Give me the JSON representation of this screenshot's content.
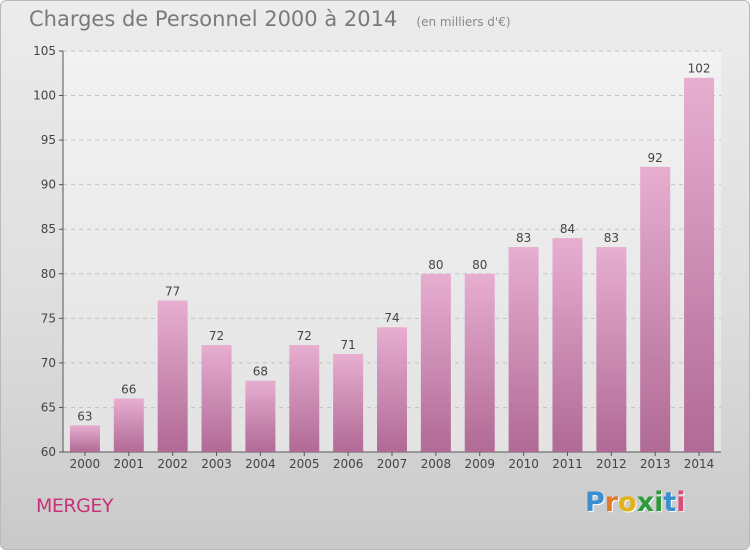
{
  "title": "Charges de Personnel 2000 à 2014",
  "subtitle": "(en milliers d'€)",
  "place": "MERGEY",
  "logo": {
    "letters": [
      "P",
      "r",
      "o",
      "x",
      "i",
      "t",
      "i"
    ],
    "colors": [
      "#3b8fd0",
      "#e07a2a",
      "#e2b21d",
      "#2d9a3c",
      "#2d9a3c",
      "#3b8fd0",
      "#e0477a"
    ]
  },
  "colors": {
    "bar": "#d780b4",
    "bar_light": "#e7aed0",
    "bar_dark": "#b06a95"
  },
  "chart_data": {
    "type": "bar",
    "categories": [
      "2000",
      "2001",
      "2002",
      "2003",
      "2004",
      "2005",
      "2006",
      "2007",
      "2008",
      "2009",
      "2010",
      "2011",
      "2012",
      "2013",
      "2014"
    ],
    "values": [
      63,
      66,
      77,
      72,
      68,
      72,
      71,
      74,
      80,
      80,
      83,
      84,
      83,
      92,
      102
    ],
    "ylim": [
      60,
      105
    ],
    "yticks": [
      60,
      65,
      70,
      75,
      80,
      85,
      90,
      95,
      100,
      105
    ],
    "grid": true
  }
}
